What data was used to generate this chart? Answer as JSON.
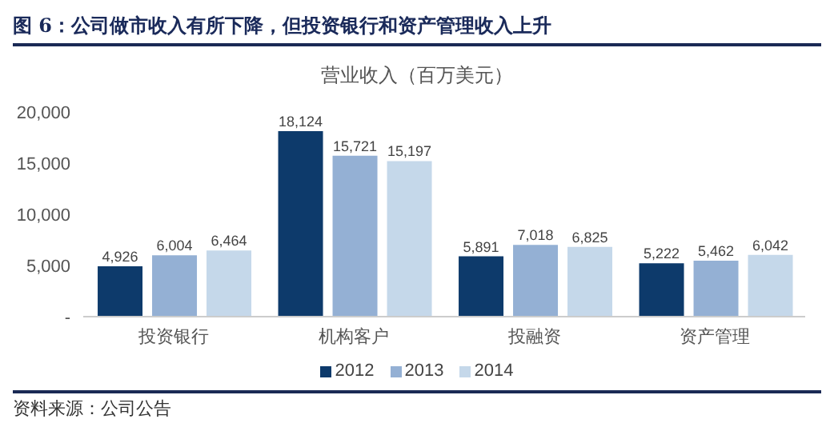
{
  "chart_data": {
    "type": "bar",
    "title": "图 6：公司做市收入有所下降，但投资银行和资产管理收入上升",
    "subtitle": "营业收入（百万美元）",
    "categories": [
      "投资银行",
      "机构客户",
      "投融资",
      "资产管理"
    ],
    "series": [
      {
        "name": "2012",
        "color": "#0d3a6b",
        "values": [
          4926,
          18124,
          5891,
          5222
        ],
        "value_labels": [
          "4,926",
          "18,124",
          "5,891",
          "5,222"
        ]
      },
      {
        "name": "2013",
        "color": "#94b0d4",
        "values": [
          6004,
          15721,
          7018,
          5462
        ],
        "value_labels": [
          "6,004",
          "15,721",
          "7,018",
          "5,462"
        ]
      },
      {
        "name": "2014",
        "color": "#c5d8ea",
        "values": [
          6464,
          15197,
          6825,
          6042
        ],
        "value_labels": [
          "6,464",
          "15,197",
          "6,825",
          "6,042"
        ]
      }
    ],
    "ylim": [
      0,
      20000
    ],
    "yticks": [
      {
        "value": 0,
        "label": "-"
      },
      {
        "value": 5000,
        "label": "5,000"
      },
      {
        "value": 10000,
        "label": "10,000"
      },
      {
        "value": 15000,
        "label": "15,000"
      },
      {
        "value": 20000,
        "label": "20,000"
      }
    ],
    "grid": false,
    "legend": "bottom",
    "annotations": [
      "资料来源：公司公告"
    ]
  }
}
